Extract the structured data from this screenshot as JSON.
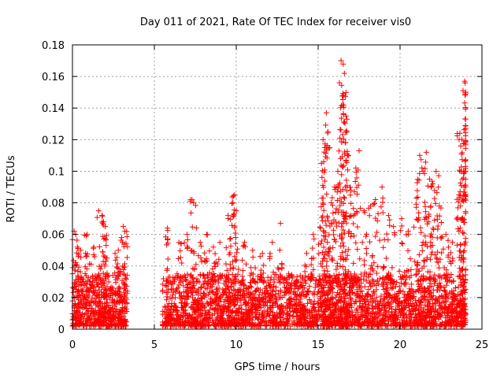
{
  "chart_data": {
    "type": "scatter",
    "title": "Day 011 of 2021, Rate Of TEC Index for receiver vis0",
    "xlabel": "GPS time / hours",
    "ylabel": "ROTI / TECUs",
    "xlim": [
      0,
      25
    ],
    "ylim": [
      0,
      0.18
    ],
    "x_ticks": [
      "0",
      "5",
      "10",
      "15",
      "20",
      "25"
    ],
    "y_ticks": [
      "0",
      "0.02",
      "0.04",
      "0.06",
      "0.08",
      "0.1",
      "0.12",
      "0.14",
      "0.16",
      "0.18"
    ],
    "grid": true,
    "marker": "+",
    "color": "#ff0000",
    "data_gaps_hours": [
      [
        3.35,
        5.5
      ]
    ],
    "series": [
      {
        "points": [
          [
            0.1,
            0.062
          ],
          [
            0.2,
            0.06
          ],
          [
            0.3,
            0.052
          ],
          [
            0.5,
            0.05
          ],
          [
            0.8,
            0.048
          ],
          [
            0.9,
            0.06
          ],
          [
            1.3,
            0.052
          ],
          [
            1.6,
            0.075
          ],
          [
            1.8,
            0.072
          ],
          [
            1.9,
            0.068
          ],
          [
            2.0,
            0.065
          ],
          [
            2.1,
            0.045
          ],
          [
            2.6,
            0.048
          ],
          [
            2.8,
            0.05
          ],
          [
            3.0,
            0.058
          ],
          [
            3.1,
            0.065
          ],
          [
            3.2,
            0.062
          ],
          [
            5.8,
            0.064
          ],
          [
            6.5,
            0.055
          ],
          [
            7.0,
            0.06
          ],
          [
            7.3,
            0.082
          ],
          [
            7.4,
            0.08
          ],
          [
            7.8,
            0.055
          ],
          [
            8.2,
            0.06
          ],
          [
            8.6,
            0.052
          ],
          [
            9.0,
            0.055
          ],
          [
            9.5,
            0.072
          ],
          [
            9.8,
            0.08
          ],
          [
            9.9,
            0.085
          ],
          [
            10.0,
            0.075
          ],
          [
            10.5,
            0.055
          ],
          [
            11.0,
            0.05
          ],
          [
            11.6,
            0.048
          ],
          [
            12.2,
            0.055
          ],
          [
            12.7,
            0.067
          ],
          [
            13.2,
            0.035
          ],
          [
            13.8,
            0.03
          ],
          [
            14.3,
            0.048
          ],
          [
            14.7,
            0.06
          ],
          [
            15.2,
            0.105
          ],
          [
            15.3,
            0.12
          ],
          [
            15.4,
            0.115
          ],
          [
            15.5,
            0.137
          ],
          [
            15.6,
            0.125
          ],
          [
            15.8,
            0.08
          ],
          [
            16.0,
            0.09
          ],
          [
            16.2,
            0.1
          ],
          [
            16.4,
            0.17
          ],
          [
            16.5,
            0.142
          ],
          [
            16.55,
            0.148
          ],
          [
            16.6,
            0.162
          ],
          [
            16.7,
            0.135
          ],
          [
            16.8,
            0.11
          ],
          [
            17.0,
            0.088
          ],
          [
            17.3,
            0.102
          ],
          [
            17.5,
            0.113
          ],
          [
            17.8,
            0.075
          ],
          [
            18.2,
            0.078
          ],
          [
            18.5,
            0.082
          ],
          [
            18.9,
            0.09
          ],
          [
            19.3,
            0.072
          ],
          [
            19.6,
            0.065
          ],
          [
            20.1,
            0.07
          ],
          [
            20.5,
            0.062
          ],
          [
            21.0,
            0.083
          ],
          [
            21.2,
            0.11
          ],
          [
            21.4,
            0.1
          ],
          [
            21.6,
            0.112
          ],
          [
            21.8,
            0.095
          ],
          [
            22.0,
            0.092
          ],
          [
            22.2,
            0.1
          ],
          [
            22.4,
            0.078
          ],
          [
            22.8,
            0.06
          ],
          [
            23.2,
            0.055
          ],
          [
            23.6,
            0.085
          ],
          [
            23.65,
            0.124
          ],
          [
            23.7,
            0.116
          ],
          [
            23.8,
            0.095
          ],
          [
            23.9,
            0.09
          ],
          [
            23.95,
            0.157
          ],
          [
            24.0,
            0.15
          ],
          [
            23.98,
            0.118
          ]
        ],
        "background_band": {
          "x_ranges": [
            [
              0,
              3.35
            ],
            [
              5.5,
              24.0
            ]
          ],
          "typical_range": [
            0.002,
            0.035
          ]
        }
      }
    ]
  }
}
